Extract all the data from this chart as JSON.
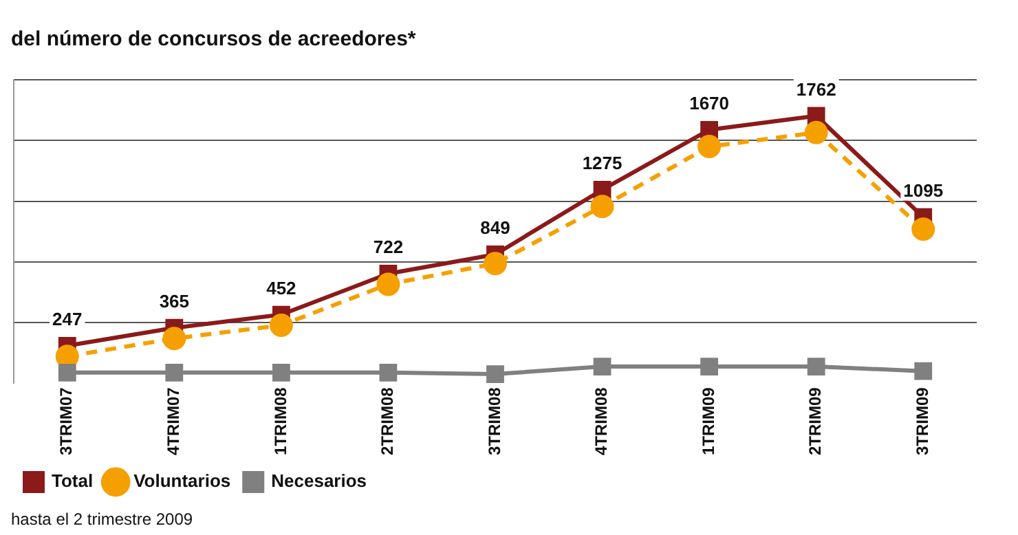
{
  "chart_data": {
    "type": "line",
    "title": "del número de concursos de acreedores*",
    "categories": [
      "3TRIM07",
      "4TRIM07",
      "1TRIM08",
      "2TRIM08",
      "3TRIM08",
      "4TRIM08",
      "1TRIM09",
      "2TRIM09",
      "3TRIM09"
    ],
    "series": [
      {
        "name": "Total",
        "color": "#8b1a1a",
        "marker": "square",
        "line_style": "solid",
        "values": [
          247,
          365,
          452,
          722,
          849,
          1275,
          1670,
          1762,
          1095
        ],
        "value_labels": [
          "247",
          "365",
          "452",
          "722",
          "849",
          "1275",
          "1670",
          "1762",
          "1095"
        ]
      },
      {
        "name": "Voluntarios",
        "color": "#f5a000",
        "marker": "circle",
        "line_style": "dashed",
        "values": [
          177,
          295,
          382,
          652,
          789,
          1165,
          1560,
          1652,
          1015
        ]
      },
      {
        "name": "Necesarios",
        "color": "#808080",
        "marker": "square",
        "line_style": "solid",
        "values": [
          70,
          70,
          70,
          70,
          60,
          110,
          110,
          110,
          80
        ]
      }
    ],
    "ylim": [
      0,
      2000
    ],
    "yticks": [
      {
        "value": 400,
        "label": null
      },
      {
        "value": 800,
        "label": null
      },
      {
        "value": 1200,
        "label": null
      },
      {
        "value": 1600,
        "label": null
      },
      {
        "value": 2000,
        "label": null
      }
    ],
    "grid": "y",
    "tick_labels": "x",
    "legend": "bottom",
    "annotations": [
      "hasta el 2 trimestre 2009"
    ]
  }
}
